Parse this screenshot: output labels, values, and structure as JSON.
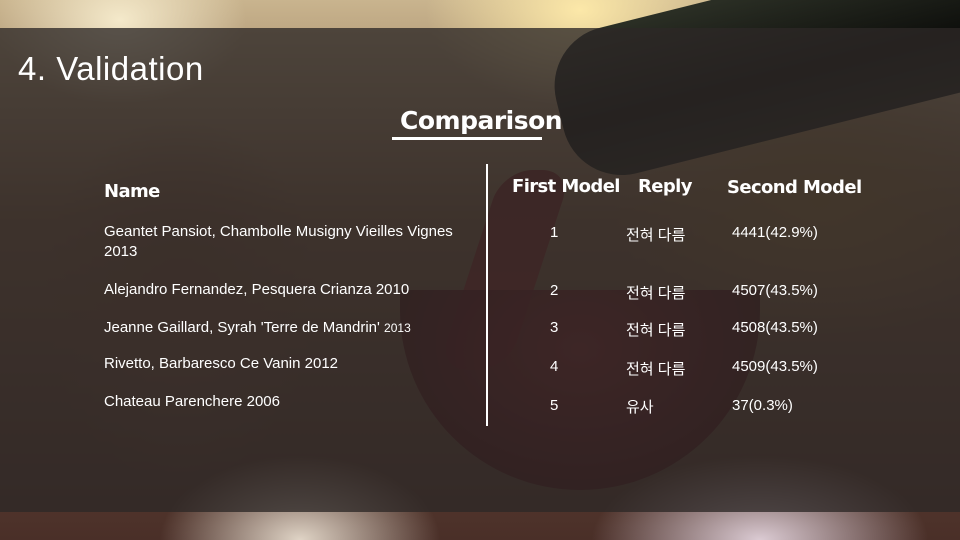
{
  "slide": {
    "title": "4. Validation",
    "subtitle": "Comparison"
  },
  "table": {
    "headers": {
      "name": "Name",
      "first_model": "First Model",
      "reply": "Reply",
      "second_model": "Second Model"
    },
    "rows": [
      {
        "name": "Geantet Pansiot, Chambolle Musigny Vieilles Vignes 2013",
        "first_model": "1",
        "reply": "전혀 다름",
        "second_model": "4441(42.9%)"
      },
      {
        "name": "Alejandro Fernandez, Pesquera Crianza 2010",
        "first_model": "2",
        "reply": "전혀 다름",
        "second_model": "4507(43.5%)"
      },
      {
        "name": "Jeanne Gaillard, Syrah 'Terre de Mandrin'",
        "name_suffix": "2013",
        "first_model": "3",
        "reply": "전혀 다름",
        "second_model": "4508(43.5%)"
      },
      {
        "name": "Rivetto, Barbaresco Ce Vanin 2012",
        "first_model": "4",
        "reply": "전혀 다름",
        "second_model": "4509(43.5%)"
      },
      {
        "name": "Chateau Parenchere 2006",
        "first_model": "5",
        "reply": "유사",
        "second_model": "37(0.3%)"
      }
    ]
  }
}
